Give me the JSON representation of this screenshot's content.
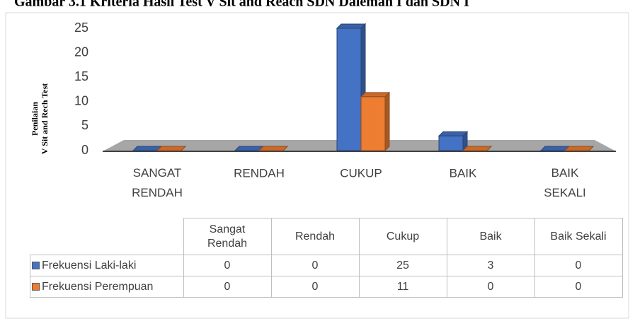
{
  "chart_data": {
    "type": "bar",
    "title": "Gambar 3.1 Kriteria Hasil Test V Sit and Reach SDN Dalemah I dan SDN I",
    "y_label": [
      "Penilaian",
      "V Sit and Rech Test"
    ],
    "categories": [
      "SANGAT RENDAH",
      "RENDAH",
      "CUKUP",
      "BAIK",
      "BAIK SEKALI"
    ],
    "table_headers": [
      "Sangat Rendah",
      "Rendah",
      "Cukup",
      "Baik",
      "Baik Sekali"
    ],
    "series": [
      {
        "name": "Frekuensi Laki-laki",
        "color": "#4472c4",
        "values": [
          0,
          0,
          25,
          3,
          0
        ]
      },
      {
        "name": "Frekuensi Perempuan",
        "color": "#ed7d31",
        "values": [
          0,
          0,
          11,
          0,
          0
        ]
      }
    ],
    "ylim": [
      0,
      25
    ],
    "yticks": [
      0,
      5,
      10,
      15,
      20,
      25
    ]
  }
}
